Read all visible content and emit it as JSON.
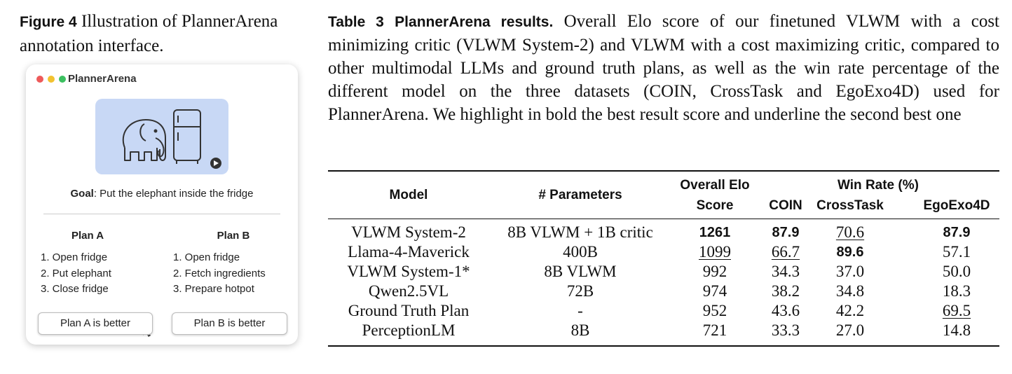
{
  "figure": {
    "label": "Figure 4",
    "caption": "Illustration of PlannerArena annotation interface.",
    "interface": {
      "app_name": "PlannerArena",
      "goal_label": "Goal",
      "goal_text": ": Put the elephant inside the fridge",
      "plans": [
        {
          "title": "Plan A",
          "steps": [
            "1. Open fridge",
            "2. Put elephant",
            "3. Close fridge"
          ]
        },
        {
          "title": "Plan B",
          "steps": [
            "1. Open fridge",
            "2. Fetch ingredients",
            "3. Prepare hotpot"
          ]
        }
      ],
      "buttons": [
        "Plan A is better",
        "Plan B is better"
      ]
    }
  },
  "table": {
    "label": "Table 3",
    "title": "PlannerArena results.",
    "caption": "Overall Elo score of our finetuned VLWM with a cost minimizing critic (VLWM System-2) and VLWM with a cost maximizing critic, compared to other multimodal LLMs and ground truth plans, as well as the win rate percentage of the different model on the three datasets (COIN, CrossTask and EgoExo4D) used for PlannerArena. We highlight in bold the best result score and underline the second best one",
    "column_group": "Win Rate (%)",
    "columns": [
      "Model",
      "# Parameters",
      "Overall Elo Score",
      "COIN",
      "CrossTask",
      "EgoExo4D"
    ],
    "rows": [
      [
        "VLWM System-2",
        "8B VLWM + 1B critic",
        {
          "text": "1261",
          "style": "bold"
        },
        {
          "text": "87.9",
          "style": "bold"
        },
        {
          "text": "70.6",
          "style": "underline"
        },
        {
          "text": "87.9",
          "style": "bold"
        }
      ],
      [
        "Llama-4-Maverick",
        "400B",
        {
          "text": "1099",
          "style": "underline"
        },
        {
          "text": "66.7",
          "style": "underline"
        },
        {
          "text": "89.6",
          "style": "bold"
        },
        "57.1"
      ],
      [
        "VLWM System-1*",
        "8B VLWM",
        "992",
        "34.3",
        "37.0",
        "50.0"
      ],
      [
        "Qwen2.5VL",
        "72B",
        "974",
        "38.2",
        "34.8",
        "18.3"
      ],
      [
        "Ground Truth Plan",
        "-",
        "952",
        "43.6",
        "42.2",
        {
          "text": "69.5",
          "style": "underline"
        }
      ],
      [
        "PerceptionLM",
        "8B",
        "721",
        "33.3",
        "27.0",
        "14.8"
      ]
    ]
  }
}
